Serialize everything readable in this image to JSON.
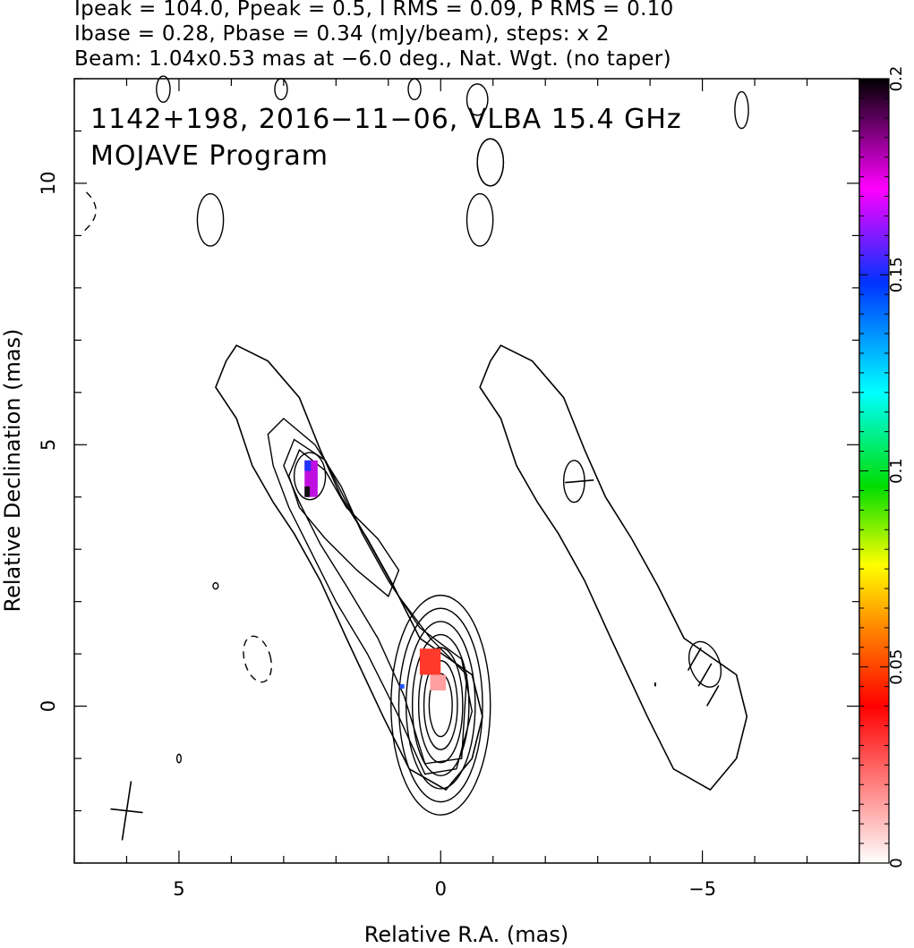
{
  "header": {
    "line1": "Ipeak = 104.0, Ppeak = 0.5, I RMS = 0.09, P RMS = 0.10",
    "line2": "Ibase = 0.28, Pbase = 0.34 (mJy/beam), steps: x 2",
    "line3": "Beam: 1.04x0.53 mas at −6.0 deg., Nat. Wgt. (no taper)"
  },
  "chart_data": [
    {
      "type": "heatmap",
      "title": "1142+198, 2016−11−06, VLBA 15.4 GHz",
      "subtitle": "MOJAVE Program",
      "xlabel": "Relative R.A. (mas)",
      "ylabel": "Relative Declination (mas)",
      "xlim": [
        7.0,
        -8.0
      ],
      "ylim": [
        -3.0,
        12.0
      ],
      "x_ticks": [
        5,
        0,
        -5
      ],
      "x_tick_labels": [
        "5",
        "0",
        "−5"
      ],
      "y_ticks": [
        0,
        5,
        10
      ],
      "y_tick_labels": [
        "0",
        "5",
        "10"
      ],
      "panels": [
        {
          "name": "total-intensity-contours-with-fractional-polarization",
          "ra_center": 0
        },
        {
          "name": "lowest-contour-with-polarization-vectors",
          "ra_center": -5.05
        }
      ],
      "features": [
        {
          "name": "core",
          "ra": 0.0,
          "dec": 0.0
        },
        {
          "name": "jet-knot",
          "ra": 2.5,
          "dec": 4.4
        }
      ],
      "polarization_patches": [
        {
          "name": "core-patch",
          "ra": 0.2,
          "dec": 0.7,
          "frac_pol": 0.03
        },
        {
          "name": "knot-patch",
          "ra": 2.5,
          "dec": 4.3,
          "frac_pol": 0.19
        }
      ],
      "beam": {
        "major_mas": 1.04,
        "minor_mas": 0.53,
        "pa_deg": -6.0
      }
    },
    {
      "type": "colorbar",
      "range": [
        0,
        0.2
      ],
      "ticks": [
        0,
        0.05,
        0.1,
        0.15,
        0.2
      ],
      "tick_labels": [
        "0",
        "0.05",
        "0.1",
        "0.15",
        "0.2"
      ],
      "colors": [
        "#ffffff",
        "#ff0000",
        "#ff9900",
        "#ffff00",
        "#00dd00",
        "#00ffff",
        "#0055ff",
        "#ff00ff",
        "#000000"
      ]
    }
  ]
}
